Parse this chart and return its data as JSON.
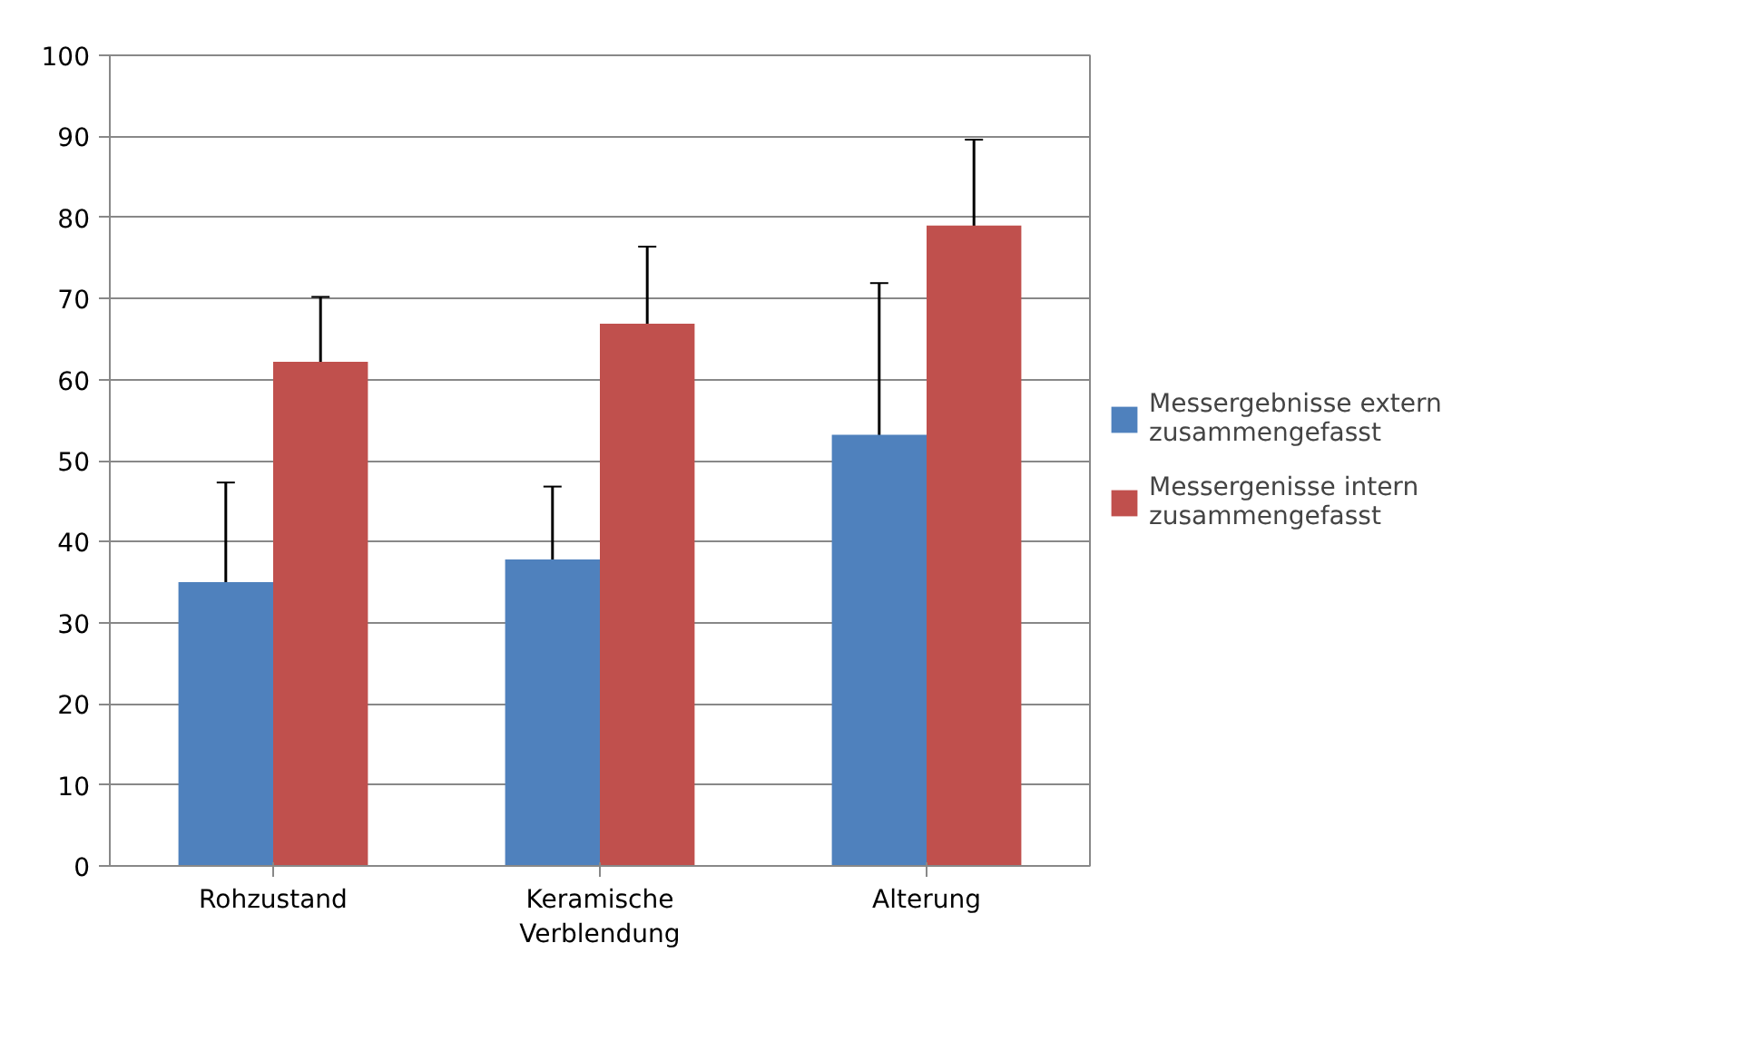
{
  "chart_data": {
    "type": "bar",
    "categories": [
      "Rohzustand",
      "Keramische Verblendung",
      "Alterung"
    ],
    "series": [
      {
        "name": "Messergebnisse extern zusammengefasst",
        "color": "#4f81bd",
        "values": [
          35,
          37.8,
          53.2
        ],
        "errors": [
          12.3,
          9,
          18.7
        ]
      },
      {
        "name": "Messergenisse intern zusammengefasst",
        "color": "#c0504d",
        "values": [
          62.2,
          66.9,
          79
        ],
        "errors": [
          8,
          9.5,
          10.6
        ]
      }
    ],
    "ylim": [
      0,
      100
    ],
    "yticks": [
      0,
      10,
      20,
      30,
      40,
      50,
      60,
      70,
      80,
      90,
      100
    ],
    "grid": "y",
    "legend": "right"
  }
}
